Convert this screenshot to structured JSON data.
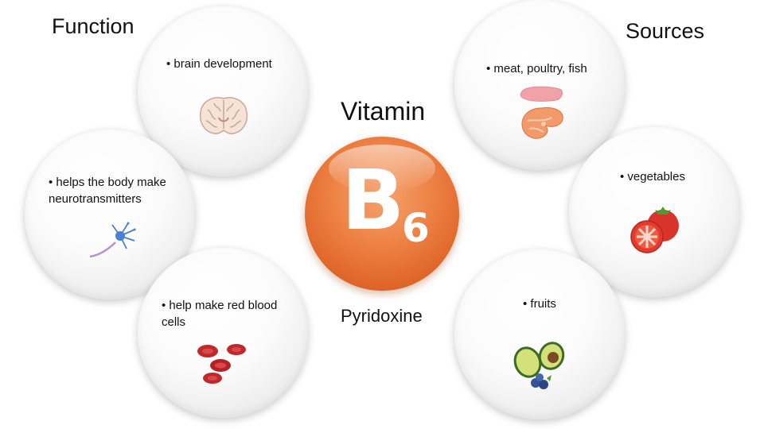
{
  "headings": {
    "function": "Function",
    "sources": "Sources"
  },
  "center": {
    "top_label": "Vitamin",
    "letter": "B",
    "subscript": "6",
    "bottom_label": "Pyridoxine",
    "ball_color": "#ea7a3b"
  },
  "functions": [
    {
      "text": "• brain development",
      "icon": "brain-icon"
    },
    {
      "text": "• helps the body make neurotransmitters",
      "icon": "neuron-icon"
    },
    {
      "text": "• help make red blood cells",
      "icon": "red-blood-cells-icon"
    }
  ],
  "sources": [
    {
      "text": "• meat, poultry, fish",
      "icon": "meat-fish-icon"
    },
    {
      "text": "• vegetables",
      "icon": "tomato-icon"
    },
    {
      "text": "• fruits",
      "icon": "avocado-berries-icon"
    }
  ]
}
